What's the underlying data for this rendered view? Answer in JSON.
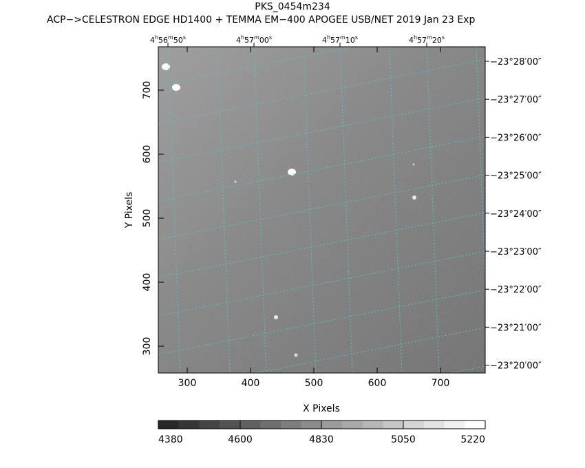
{
  "title": "PKS_0454m234",
  "subtitle": "ACP−>CELESTRON EDGE HD1400 + TEMMA EM−400 APOGEE USB/NET   2019 Jan 23    Exp",
  "axes": {
    "xlabel": "X Pixels",
    "ylabel": "Y Pixels",
    "x_ticks": [
      "300",
      "400",
      "500",
      "600",
      "700"
    ],
    "y_ticks": [
      "300",
      "400",
      "500",
      "600",
      "700"
    ],
    "ra_ticks": [
      {
        "h": "4",
        "m": "56",
        "s": "50"
      },
      {
        "h": "4",
        "m": "57",
        "s": "00"
      },
      {
        "h": "4",
        "m": "57",
        "s": "10"
      },
      {
        "h": "4",
        "m": "57",
        "s": "20"
      }
    ],
    "dec_ticks": [
      "−23°28′00″",
      "−23°27′00″",
      "−23°26′00″",
      "−23°25′00″",
      "−23°24′00″",
      "−23°23′00″",
      "−23°22′00″",
      "−23°21′00″",
      "−23°20′00″"
    ]
  },
  "colorbar": {
    "labels": [
      "4380",
      "4600",
      "4830",
      "5050",
      "5220"
    ]
  },
  "colors": {
    "grid": "#4fc9cf",
    "frame": "#000000"
  }
}
